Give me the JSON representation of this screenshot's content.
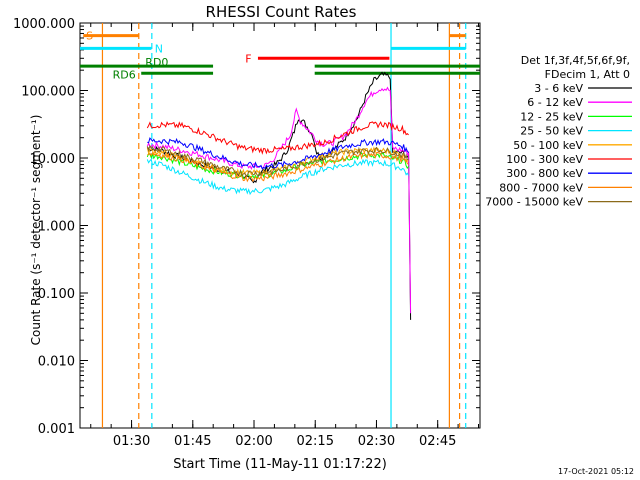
{
  "chart_data": {
    "type": "line",
    "title": "RHESSI Count Rates",
    "xlabel": "Start Time (11-May-11 01:17:22)",
    "ylabel": "Count Rate (s⁻¹ detector⁻¹ segment⁻¹)",
    "y_scale": "log",
    "ylim": [
      0.001,
      1000
    ],
    "x_unit": "minutes after 01:17:22 (UTC time axis)",
    "xlim": [
      0,
      98
    ],
    "x_tick_labels": [
      "01:30",
      "01:45",
      "02:00",
      "02:15",
      "02:30",
      "02:45"
    ],
    "y_tick_labels": [
      "0.001",
      "0.010",
      "0.100",
      "1.000",
      "10.000",
      "100.000",
      "1000.000"
    ],
    "legend_header": [
      "Det 1f,3f,4f,5f,6f,9f,",
      "FDecim 1, Att 0"
    ],
    "legend_position": "right",
    "timestamp": "17-Oct-2021 05:12",
    "flag_labels": {
      "S": "S",
      "N": "N",
      "F": "F",
      "RD0": "RD0",
      "RD6": "RD6"
    },
    "flag_bars": [
      {
        "label": "S",
        "color": "#ff8000",
        "segments": [
          [
            0.8,
            14.5
          ],
          [
            90.5,
            94.5
          ]
        ],
        "level": 650
      },
      {
        "label": "N",
        "color": "#00e5ff",
        "segments": [
          [
            0.0,
            17.5
          ],
          [
            76.2,
            94.5
          ]
        ],
        "level": 420
      },
      {
        "label": "F",
        "color": "#ff0000",
        "segments": [
          [
            43.6,
            75.8
          ]
        ],
        "level": 300
      },
      {
        "label": "RD0",
        "color": "#008000",
        "segments": [
          [
            0.0,
            32.6
          ],
          [
            57.5,
            98.0
          ]
        ],
        "level": 230
      },
      {
        "label": "RD6",
        "color": "#008000",
        "segments": [
          [
            15.0,
            32.6
          ],
          [
            57.5,
            98.0
          ]
        ],
        "level": 180
      }
    ],
    "vertical_markers": [
      {
        "x": 5.5,
        "color": "#ff8000",
        "style": "solid"
      },
      {
        "x": 14.4,
        "color": "#ff8000",
        "style": "dashed"
      },
      {
        "x": 17.6,
        "color": "#00e5ff",
        "style": "dashed"
      },
      {
        "x": 76.2,
        "color": "#00e5ff",
        "style": "solid"
      },
      {
        "x": 90.5,
        "color": "#ff8000",
        "style": "solid"
      },
      {
        "x": 93.0,
        "color": "#ff8000",
        "style": "dashed"
      },
      {
        "x": 94.5,
        "color": "#00e5ff",
        "style": "dashed"
      }
    ],
    "series": [
      {
        "name": "3 - 6 keV",
        "color": "#000000",
        "points": [
          [
            16.5,
            14
          ],
          [
            20,
            13
          ],
          [
            25,
            10
          ],
          [
            30,
            8
          ],
          [
            35,
            6.5
          ],
          [
            40,
            5.5
          ],
          [
            42.5,
            4.2
          ],
          [
            44,
            6
          ],
          [
            46,
            7
          ],
          [
            48,
            8
          ],
          [
            50,
            11
          ],
          [
            51,
            14
          ],
          [
            52.5,
            25
          ],
          [
            53.5,
            40
          ],
          [
            55,
            33
          ],
          [
            57,
            22
          ],
          [
            58,
            12
          ],
          [
            59,
            10
          ],
          [
            62,
            13
          ],
          [
            65,
            20
          ],
          [
            68,
            40
          ],
          [
            70,
            80
          ],
          [
            72,
            140
          ],
          [
            74,
            170
          ],
          [
            76,
            160
          ],
          [
            76.6,
            12
          ],
          [
            79,
            12
          ],
          [
            80.5,
            10
          ],
          [
            81,
            0.04
          ]
        ]
      },
      {
        "name": "6 - 12 keV",
        "color": "#ff00ff",
        "points": [
          [
            16.5,
            16
          ],
          [
            20,
            15
          ],
          [
            25,
            13
          ],
          [
            30,
            11
          ],
          [
            35,
            9
          ],
          [
            40,
            7.5
          ],
          [
            45,
            7.5
          ],
          [
            47,
            9
          ],
          [
            49,
            13
          ],
          [
            50,
            16
          ],
          [
            51.5,
            22
          ],
          [
            53,
            50
          ],
          [
            54,
            35
          ],
          [
            55.5,
            28
          ],
          [
            57,
            22
          ],
          [
            58.5,
            17
          ],
          [
            60,
            16
          ],
          [
            62,
            17
          ],
          [
            65,
            22
          ],
          [
            68,
            40
          ],
          [
            70,
            70
          ],
          [
            72,
            95
          ],
          [
            74,
            110
          ],
          [
            76,
            100
          ],
          [
            76.6,
            14
          ],
          [
            79,
            13
          ],
          [
            80.5,
            12
          ],
          [
            81,
            0.05
          ]
        ]
      },
      {
        "name": "12 - 25 keV",
        "color": "#00ff00",
        "points": [
          [
            16.5,
            11
          ],
          [
            20,
            10.5
          ],
          [
            25,
            8.5
          ],
          [
            30,
            7
          ],
          [
            35,
            6
          ],
          [
            40,
            5.5
          ],
          [
            45,
            5.5
          ],
          [
            50,
            6.5
          ],
          [
            55,
            8
          ],
          [
            60,
            9
          ],
          [
            65,
            10
          ],
          [
            70,
            11
          ],
          [
            74,
            11
          ],
          [
            76,
            10
          ],
          [
            79,
            9
          ],
          [
            80.5,
            7.5
          ]
        ]
      },
      {
        "name": "25 - 50 keV",
        "color": "#00e5ff",
        "points": [
          [
            16.5,
            9
          ],
          [
            20,
            8
          ],
          [
            25,
            6
          ],
          [
            30,
            4.5
          ],
          [
            35,
            3.5
          ],
          [
            40,
            3.2
          ],
          [
            45,
            3.3
          ],
          [
            50,
            4
          ],
          [
            55,
            5.5
          ],
          [
            60,
            7
          ],
          [
            65,
            8
          ],
          [
            70,
            8.5
          ],
          [
            74,
            8.5
          ],
          [
            76,
            8
          ],
          [
            79,
            7
          ],
          [
            80.5,
            5.5
          ]
        ]
      },
      {
        "name": "50 - 100 keV",
        "color": "#ffaa00",
        "points": [
          [
            16.5,
            13
          ],
          [
            20,
            12
          ],
          [
            25,
            10
          ],
          [
            30,
            8
          ],
          [
            35,
            6.5
          ],
          [
            40,
            6
          ],
          [
            45,
            6
          ],
          [
            50,
            7
          ],
          [
            55,
            9
          ],
          [
            60,
            11
          ],
          [
            65,
            12.5
          ],
          [
            70,
            13
          ],
          [
            74,
            13
          ],
          [
            76,
            12.5
          ],
          [
            79,
            11
          ],
          [
            80.5,
            9
          ]
        ]
      },
      {
        "name": "100 - 300 keV",
        "color": "#ff0000",
        "points": [
          [
            16.5,
            30
          ],
          [
            20,
            31
          ],
          [
            25,
            30
          ],
          [
            30,
            24
          ],
          [
            35,
            18
          ],
          [
            40,
            14
          ],
          [
            45,
            13
          ],
          [
            50,
            13.5
          ],
          [
            55,
            15
          ],
          [
            60,
            17
          ],
          [
            65,
            23
          ],
          [
            70,
            30
          ],
          [
            74,
            32
          ],
          [
            76,
            30
          ],
          [
            79,
            27
          ],
          [
            80.5,
            22
          ]
        ]
      },
      {
        "name": "300 - 800 keV",
        "color": "#0000ff",
        "points": [
          [
            16.5,
            18
          ],
          [
            20,
            18
          ],
          [
            25,
            17
          ],
          [
            30,
            13
          ],
          [
            35,
            10
          ],
          [
            40,
            8
          ],
          [
            45,
            7.5
          ],
          [
            50,
            8
          ],
          [
            55,
            9.5
          ],
          [
            60,
            12
          ],
          [
            65,
            15
          ],
          [
            70,
            17
          ],
          [
            74,
            17.5
          ],
          [
            76,
            17
          ],
          [
            79,
            15
          ],
          [
            80.5,
            12
          ]
        ]
      },
      {
        "name": "800 - 7000 keV",
        "color": "#ff8000",
        "points": [
          [
            16.5,
            12
          ],
          [
            20,
            11
          ],
          [
            25,
            9.5
          ],
          [
            30,
            7.5
          ],
          [
            35,
            6
          ],
          [
            40,
            5
          ],
          [
            45,
            5
          ],
          [
            50,
            5.8
          ],
          [
            55,
            7
          ],
          [
            60,
            8.5
          ],
          [
            65,
            10
          ],
          [
            70,
            11
          ],
          [
            74,
            11
          ],
          [
            76,
            10.5
          ],
          [
            79,
            9.5
          ],
          [
            80.5,
            8
          ]
        ]
      },
      {
        "name": "7000 - 15000 keV",
        "color": "#8b6a1a",
        "points": [
          [
            16.5,
            14
          ],
          [
            20,
            13.5
          ],
          [
            25,
            11
          ],
          [
            30,
            9
          ],
          [
            35,
            7
          ],
          [
            40,
            6
          ],
          [
            45,
            6
          ],
          [
            50,
            6.8
          ],
          [
            55,
            8.5
          ],
          [
            60,
            10
          ],
          [
            65,
            12
          ],
          [
            70,
            13
          ],
          [
            74,
            13
          ],
          [
            76,
            12.5
          ],
          [
            79,
            11
          ],
          [
            80.5,
            9.5
          ]
        ]
      }
    ]
  }
}
